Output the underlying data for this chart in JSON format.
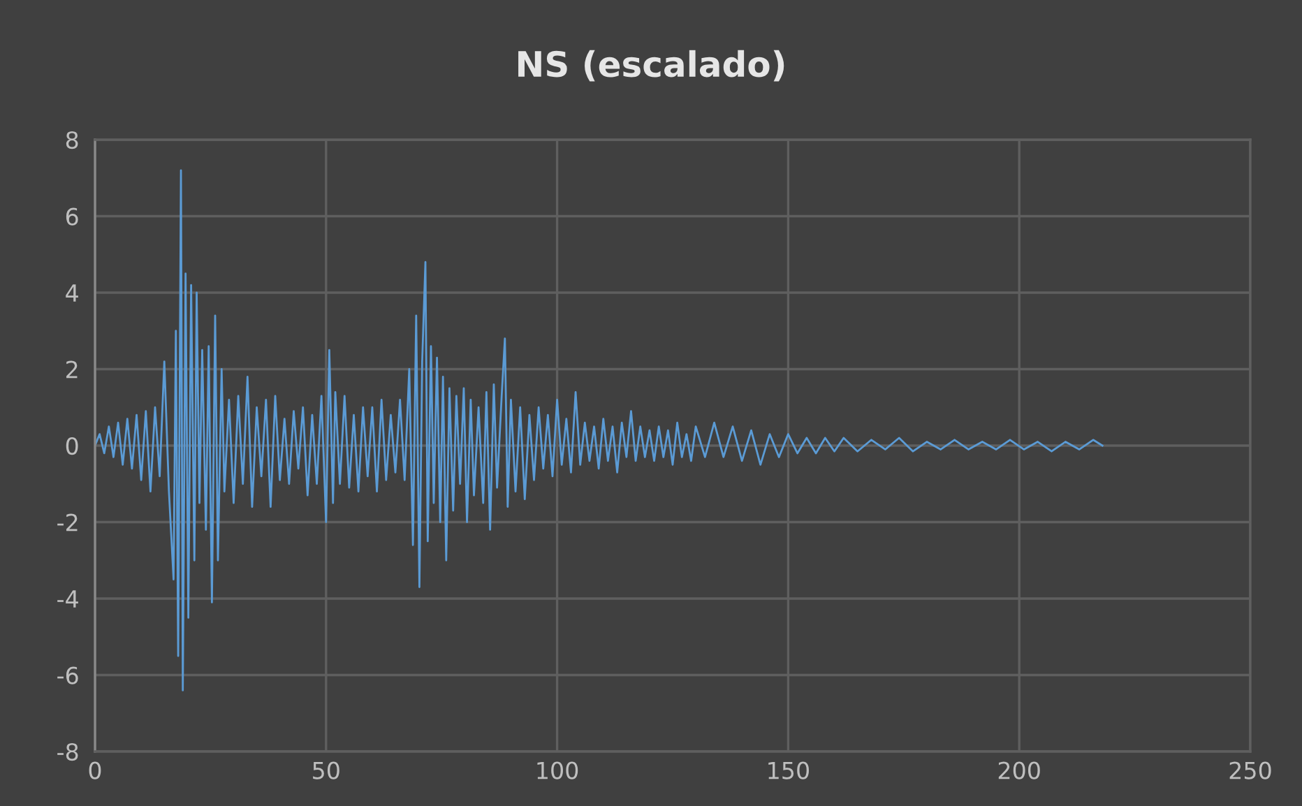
{
  "chart_data": {
    "type": "line",
    "title": "NS (escalado)",
    "x": [
      0,
      1,
      2,
      3,
      4,
      5,
      6,
      7,
      8,
      9,
      10,
      11,
      12,
      13,
      14,
      15,
      16,
      17,
      17.5,
      18,
      18.6,
      19,
      19.6,
      20.2,
      20.8,
      21.5,
      22,
      22.6,
      23.2,
      24,
      24.6,
      25.3,
      26,
      26.6,
      27.4,
      28,
      29,
      30,
      31,
      32,
      33,
      34,
      35,
      36,
      37,
      38,
      39,
      40,
      41,
      42,
      43,
      44,
      45,
      46,
      47,
      48,
      49,
      50,
      50.7,
      51.5,
      52,
      53,
      54,
      55,
      56,
      57,
      58,
      59,
      60,
      61,
      62,
      63,
      64,
      65,
      66,
      67,
      68,
      68.8,
      69.5,
      70.2,
      70.8,
      71.5,
      72,
      72.7,
      73.3,
      74,
      74.7,
      75.3,
      76,
      76.7,
      77.5,
      78.2,
      79,
      79.8,
      80.5,
      81.3,
      82,
      83,
      84,
      84.7,
      85.5,
      86.3,
      87,
      88,
      88.7,
      89.3,
      90,
      91,
      92,
      93,
      94,
      95,
      96,
      97,
      98,
      99,
      100,
      101,
      102,
      103,
      104,
      105,
      106,
      107,
      108,
      109,
      110,
      111,
      112,
      113,
      114,
      115,
      116,
      117,
      118,
      119,
      120,
      121,
      122,
      123,
      124,
      125,
      126,
      127,
      128,
      129,
      130,
      132,
      134,
      136,
      138,
      140,
      142,
      144,
      146,
      148,
      150,
      152,
      154,
      156,
      158,
      160,
      162,
      165,
      168,
      171,
      174,
      177,
      180,
      183,
      186,
      189,
      192,
      195,
      198,
      201,
      204,
      207,
      210,
      213,
      216,
      218
    ],
    "values": [
      0,
      0.3,
      -0.2,
      0.5,
      -0.3,
      0.6,
      -0.5,
      0.7,
      -0.6,
      0.8,
      -0.9,
      0.9,
      -1.2,
      1.0,
      -0.8,
      2.2,
      -1.2,
      -3.5,
      3.0,
      -5.5,
      7.2,
      -6.4,
      4.5,
      -4.5,
      4.2,
      -3.0,
      4.0,
      -1.5,
      2.5,
      -2.2,
      2.6,
      -4.1,
      3.4,
      -3.0,
      2.0,
      -1.2,
      1.2,
      -1.5,
      1.3,
      -1.0,
      1.8,
      -1.6,
      1.0,
      -0.8,
      1.2,
      -1.6,
      1.3,
      -0.9,
      0.7,
      -1.0,
      0.9,
      -0.6,
      1.0,
      -1.3,
      0.8,
      -1.0,
      1.3,
      -2.0,
      2.5,
      -1.5,
      1.4,
      -1.0,
      1.3,
      -1.1,
      0.8,
      -1.2,
      1.0,
      -0.8,
      1.0,
      -1.2,
      1.2,
      -0.9,
      0.8,
      -0.7,
      1.2,
      -0.9,
      2.0,
      -2.6,
      3.4,
      -3.7,
      2.2,
      4.8,
      -2.5,
      2.6,
      -1.5,
      2.3,
      -2.0,
      1.8,
      -3.0,
      1.5,
      -1.7,
      1.3,
      -1.0,
      1.5,
      -2.0,
      1.2,
      -1.3,
      1.0,
      -1.5,
      1.4,
      -2.2,
      1.6,
      -1.1,
      1.3,
      2.8,
      -1.6,
      1.2,
      -1.2,
      1.0,
      -1.4,
      0.8,
      -0.9,
      1.0,
      -0.6,
      0.8,
      -0.8,
      1.2,
      -0.5,
      0.7,
      -0.7,
      1.4,
      -0.5,
      0.6,
      -0.4,
      0.5,
      -0.6,
      0.7,
      -0.4,
      0.5,
      -0.7,
      0.6,
      -0.3,
      0.9,
      -0.4,
      0.5,
      -0.3,
      0.4,
      -0.4,
      0.5,
      -0.3,
      0.4,
      -0.5,
      0.6,
      -0.3,
      0.3,
      -0.4,
      0.5,
      -0.3,
      0.6,
      -0.3,
      0.5,
      -0.4,
      0.4,
      -0.5,
      0.3,
      -0.3,
      0.3,
      -0.2,
      0.2,
      -0.2,
      0.2,
      -0.15,
      0.2,
      -0.15,
      0.15,
      -0.1,
      0.2,
      -0.15,
      0.1,
      -0.1,
      0.15,
      -0.1,
      0.1,
      -0.1,
      0.15,
      -0.1,
      0.1,
      -0.15,
      0.1,
      -0.1,
      0.15,
      0
    ],
    "color": "#5b9bd5",
    "xlim": [
      0,
      250
    ],
    "xticks": [
      0,
      50,
      100,
      150,
      200,
      250
    ],
    "ylim": [
      -8,
      8
    ],
    "yticks": [
      -8,
      -6,
      -4,
      -2,
      0,
      2,
      4,
      6,
      8
    ],
    "grid": true,
    "legend": false
  }
}
